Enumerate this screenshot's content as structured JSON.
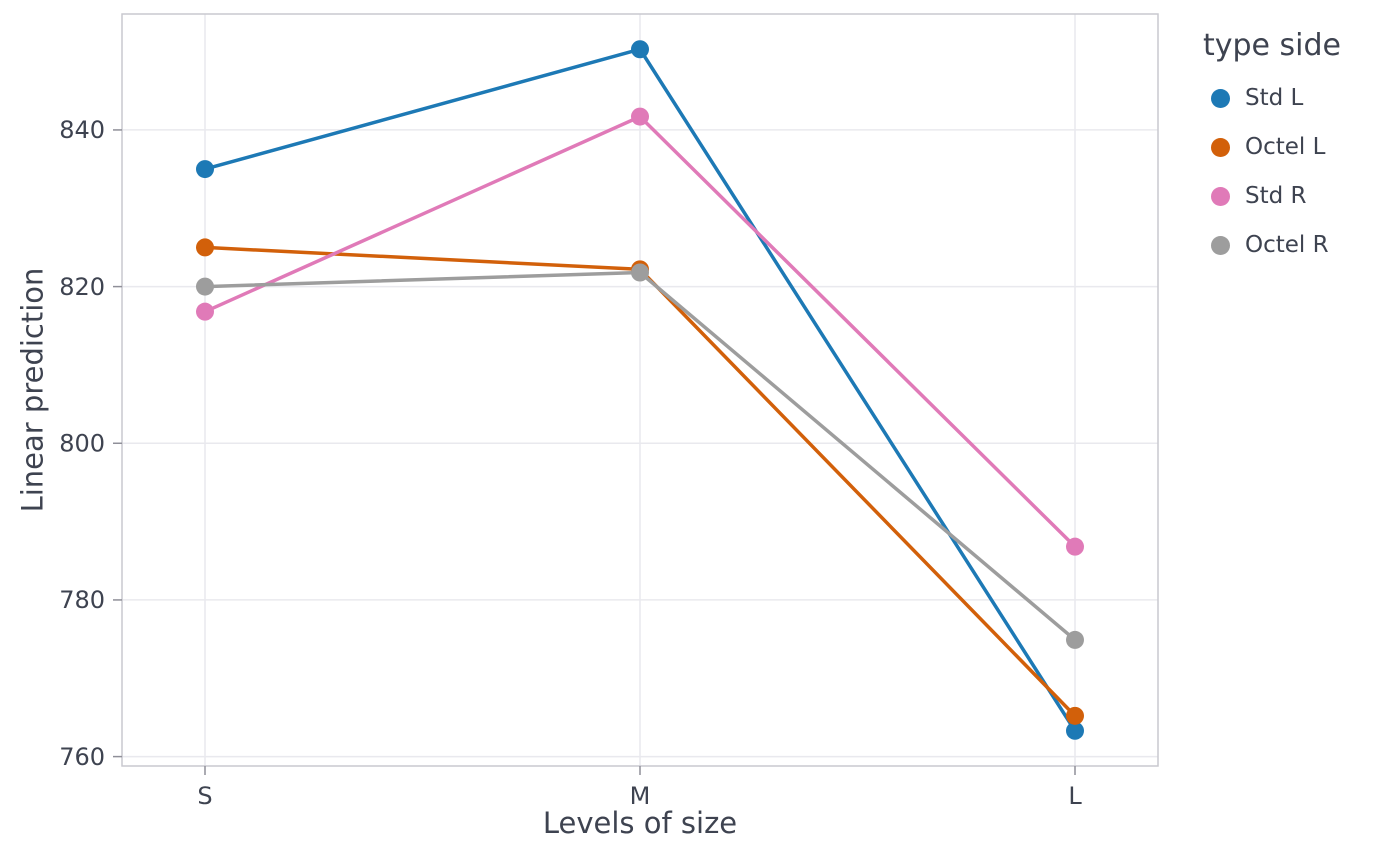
{
  "chart_data": {
    "type": "line",
    "title": "",
    "xlabel": "Levels of size",
    "ylabel": "Linear prediction",
    "categories": [
      "S",
      "M",
      "L"
    ],
    "series": [
      {
        "name": "Std L",
        "color": "#1d79b5",
        "values": [
          835.0,
          850.3,
          763.3
        ]
      },
      {
        "name": "Octel L",
        "color": "#d2600a",
        "values": [
          825.0,
          822.2,
          765.2
        ]
      },
      {
        "name": "Std R",
        "color": "#e07ab8",
        "values": [
          816.8,
          841.7,
          786.8
        ]
      },
      {
        "name": "Octel R",
        "color": "#9d9d9d",
        "values": [
          820.0,
          821.8,
          774.9
        ]
      }
    ],
    "ylim": [
      758.8,
      854.8
    ],
    "yticks": [
      760,
      780,
      800,
      820,
      840
    ],
    "grid": true,
    "legend": {
      "title": "type side",
      "position": "right"
    }
  },
  "theme": {
    "background": "#ffffff",
    "panel_background": "#ffffff",
    "grid_color": "#e9e9ee",
    "panel_border": "#c9c9cf",
    "tick_color": "#8f8f98",
    "text_color": "#3e4350"
  }
}
